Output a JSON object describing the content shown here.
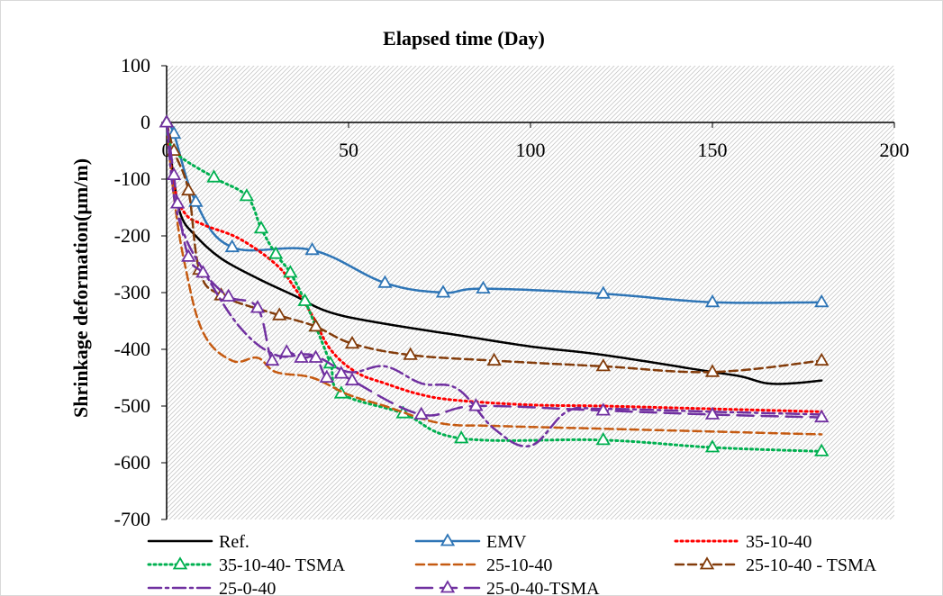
{
  "chart_data": {
    "type": "line",
    "title": "Elapsed time (Day)",
    "xlabel": "",
    "ylabel": "Shrinkage deformation(μm/m)",
    "xlim": [
      0,
      200
    ],
    "ylim": [
      -700,
      100
    ],
    "xticks": [
      0,
      50,
      100,
      150,
      200
    ],
    "yticks": [
      100,
      0,
      -100,
      -200,
      -300,
      -400,
      -500,
      -600,
      -700
    ],
    "x_axis_position": "top",
    "grid": false,
    "plot_background": "hatched",
    "legend_position": "bottom",
    "series": [
      {
        "name": "Ref.",
        "color": "#000000",
        "style": "solid",
        "marker": "none",
        "x": [
          0,
          2,
          4,
          8,
          15,
          25,
          35,
          45,
          60,
          80,
          100,
          120,
          150,
          158,
          165,
          172,
          180
        ],
        "y": [
          0,
          -100,
          -165,
          -200,
          -240,
          -275,
          -305,
          -335,
          -355,
          -375,
          -395,
          -410,
          -440,
          -448,
          -460,
          -460,
          -455
        ]
      },
      {
        "name": "EMV",
        "color": "#2e75b6",
        "style": "solid",
        "marker": "triangle",
        "x": [
          0,
          2,
          8,
          18,
          40,
          60,
          76,
          87,
          120,
          150,
          180
        ],
        "y": [
          0,
          -20,
          -140,
          -220,
          -225,
          -283,
          -300,
          -293,
          -302,
          -317,
          -317
        ]
      },
      {
        "name": "35-10-40",
        "color": "#ff0000",
        "style": "dotted",
        "marker": "none",
        "x": [
          0,
          2,
          5,
          10,
          20,
          30,
          35,
          40,
          45,
          52,
          60,
          70,
          80,
          100,
          120,
          150,
          180
        ],
        "y": [
          0,
          -110,
          -160,
          -180,
          -205,
          -250,
          -290,
          -340,
          -400,
          -440,
          -460,
          -480,
          -490,
          -498,
          -500,
          -505,
          -510
        ]
      },
      {
        "name": "35-10-40- TSMA",
        "color": "#00b050",
        "style": "dotted",
        "marker": "triangle",
        "x": [
          0,
          2,
          13,
          22,
          26,
          30,
          34,
          38,
          41,
          45,
          48,
          65,
          81,
          120,
          150,
          180
        ],
        "y": [
          0,
          -50,
          -97,
          -130,
          -187,
          -232,
          -265,
          -315,
          -360,
          -425,
          -478,
          -513,
          -557,
          -560,
          -573,
          -580
        ]
      },
      {
        "name": "25-10-40",
        "color": "#c55a11",
        "style": "dashed",
        "marker": "none",
        "x": [
          0,
          2,
          5,
          10,
          18,
          25,
          30,
          40,
          50,
          60,
          75,
          90,
          120,
          150,
          180
        ],
        "y": [
          0,
          -130,
          -250,
          -370,
          -420,
          -415,
          -440,
          -450,
          -480,
          -500,
          -530,
          -535,
          -540,
          -545,
          -550
        ]
      },
      {
        "name": "25-10-40 - TSMA",
        "color": "#833c0b",
        "style": "dashed",
        "marker": "triangle",
        "x": [
          0,
          2,
          6,
          9,
          15,
          31,
          41,
          51,
          67,
          90,
          120,
          150,
          180
        ],
        "y": [
          0,
          -50,
          -120,
          -260,
          -305,
          -340,
          -360,
          -390,
          -410,
          -420,
          -430,
          -440,
          -420
        ]
      },
      {
        "name": "25-0-40",
        "color": "#7030a0",
        "style": "dashdot",
        "marker": "none",
        "x": [
          0,
          2,
          5,
          10,
          20,
          30,
          40,
          50,
          60,
          70,
          80,
          90,
          100,
          110,
          120,
          150,
          180
        ],
        "y": [
          0,
          -130,
          -200,
          -260,
          -360,
          -410,
          -410,
          -440,
          -430,
          -460,
          -470,
          -540,
          -570,
          -510,
          -505,
          -510,
          -515
        ]
      },
      {
        "name": "25-0-40-TSMA",
        "color": "#7030a0",
        "style": "longdash",
        "marker": "triangle",
        "x": [
          0,
          2,
          3,
          6,
          10,
          17,
          25,
          29,
          33,
          37,
          41,
          44,
          48,
          51,
          70,
          85,
          120,
          150,
          180
        ],
        "y": [
          0,
          -93,
          -143,
          -237,
          -265,
          -307,
          -327,
          -420,
          -405,
          -415,
          -415,
          -450,
          -443,
          -455,
          -515,
          -500,
          -508,
          -515,
          -520
        ]
      }
    ]
  }
}
